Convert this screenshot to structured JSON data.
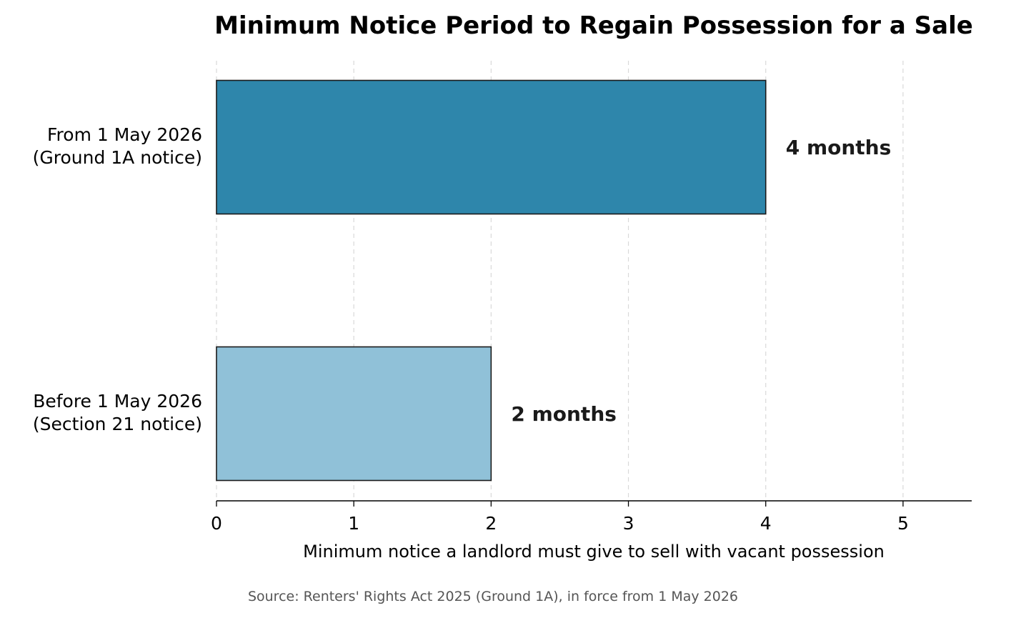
{
  "chart_data": {
    "type": "bar",
    "orientation": "horizontal",
    "title": "Minimum Notice Period to Regain Possession for a Sale",
    "xlabel": "Minimum notice a landlord must give to sell with vacant possession",
    "source_note": "Source: Renters' Rights Act 2025 (Ground 1A), in force from 1 May 2026",
    "xlim": [
      0,
      5.5
    ],
    "x_ticks": [
      "0",
      "1",
      "2",
      "3",
      "4",
      "5"
    ],
    "grid": "vertical dashed",
    "categories": [
      [
        "From 1 May 2026",
        "(Ground 1A notice)"
      ],
      [
        "Before 1 May 2026",
        "(Section 21 notice)"
      ]
    ],
    "values": [
      4,
      2
    ],
    "data_labels": [
      "4 months",
      "2 months"
    ],
    "colors": [
      "#2e86ab",
      "#90c1d8"
    ]
  }
}
